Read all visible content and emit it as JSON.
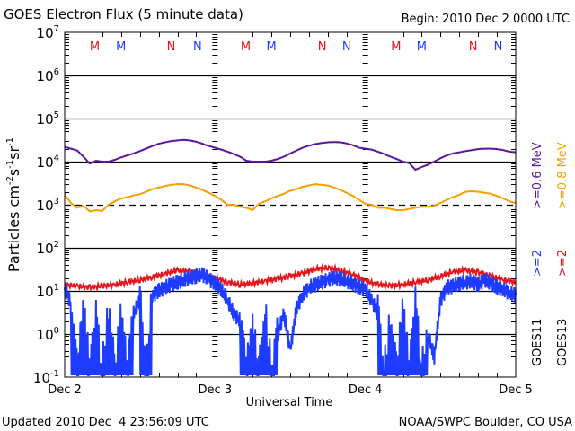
{
  "chart_data": {
    "type": "line",
    "title": "GOES Electron Flux (5 minute data)",
    "begin_label": "Begin: 2010 Dec 2 0000 UTC",
    "xlabel": "Universal Time",
    "ylabel": "Particles cm^-2 s^-1 sr^-1",
    "ylabel_parts": {
      "base": "Particles cm",
      "e1": "-2",
      "s": "s",
      "e2": "-1",
      "sr": "sr",
      "e3": "-1"
    },
    "yscale": "log",
    "ylim": [
      0.1,
      10000000
    ],
    "y_ticks": [
      {
        "base": "10",
        "exp": "7",
        "value": 10000000
      },
      {
        "base": "10",
        "exp": "6",
        "value": 1000000
      },
      {
        "base": "10",
        "exp": "5",
        "value": 100000
      },
      {
        "base": "10",
        "exp": "4",
        "value": 10000
      },
      {
        "base": "10",
        "exp": "3",
        "value": 1000
      },
      {
        "base": "10",
        "exp": "2",
        "value": 100
      },
      {
        "base": "10",
        "exp": "1",
        "value": 10
      },
      {
        "base": "10",
        "exp": "0",
        "value": 1
      },
      {
        "base": "10",
        "exp": "-1",
        "value": 0.1
      }
    ],
    "xlim_hours": [
      0,
      72
    ],
    "x_ticks": [
      {
        "label": "Dec 2",
        "hour": 0
      },
      {
        "label": "Dec 3",
        "hour": 24
      },
      {
        "label": "Dec 4",
        "hour": 48
      },
      {
        "label": "Dec 5",
        "hour": 72
      }
    ],
    "grid_lines": [
      {
        "value": 1000000,
        "style": "solid"
      },
      {
        "value": 100000,
        "style": "solid"
      },
      {
        "value": 10000,
        "style": "solid"
      },
      {
        "value": 1000,
        "style": "dashed"
      },
      {
        "value": 100,
        "style": "solid"
      },
      {
        "value": 10,
        "style": "solid"
      },
      {
        "value": 1,
        "style": "solid"
      }
    ],
    "markers": [
      {
        "label": "M",
        "hour": 4.8,
        "color": "#e8141c"
      },
      {
        "label": "M",
        "hour": 9.0,
        "color": "#1e3cff"
      },
      {
        "label": "N",
        "hour": 17.0,
        "color": "#e8141c"
      },
      {
        "label": "N",
        "hour": 21.2,
        "color": "#1e3cff"
      },
      {
        "label": "M",
        "hour": 28.9,
        "color": "#e8141c"
      },
      {
        "label": "M",
        "hour": 33.0,
        "color": "#1e3cff"
      },
      {
        "label": "N",
        "hour": 41.1,
        "color": "#e8141c"
      },
      {
        "label": "N",
        "hour": 45.0,
        "color": "#1e3cff"
      },
      {
        "label": "M",
        "hour": 52.9,
        "color": "#e8141c"
      },
      {
        "label": "M",
        "hour": 57.0,
        "color": "#1e3cff"
      },
      {
        "label": "N",
        "hour": 65.2,
        "color": "#e8141c"
      },
      {
        "label": "N",
        "hour": 69.2,
        "color": "#1e3cff"
      }
    ],
    "legend": {
      "placement": "right",
      "entries": [
        {
          "text": "GOES11",
          "color": "#000000"
        },
        {
          "text": ">=2",
          "color": "#1e3cff"
        },
        {
          "text": ">=0.6 MeV",
          "color": "#5a14a0"
        },
        {
          "text": "GOES13",
          "color": "#000000"
        },
        {
          "text": ">=2",
          "color": "#e8141c"
        },
        {
          "text": ">=0.8 MeV",
          "color": "#f5a000"
        }
      ]
    },
    "series": [
      {
        "name": "GOES11 >=0.6 MeV",
        "color": "#5a14a0",
        "hours": [
          0,
          1,
          2,
          3,
          4,
          5,
          6,
          7,
          8,
          9,
          10,
          11,
          12,
          13,
          14,
          15,
          16,
          17,
          18,
          19,
          20,
          21,
          22,
          23,
          24,
          25,
          26,
          27,
          28,
          29,
          30,
          31,
          32,
          33,
          34,
          35,
          36,
          37,
          38,
          39,
          40,
          41,
          42,
          43,
          44,
          45,
          46,
          47,
          48,
          49,
          50,
          51,
          52,
          53,
          54,
          55,
          56,
          57,
          58,
          59,
          60,
          61,
          62,
          63,
          64,
          65,
          66,
          67,
          68,
          69,
          70,
          71,
          72
        ],
        "values": [
          22000,
          20000,
          18000,
          13000,
          9000,
          10500,
          10000,
          10000,
          11000,
          12500,
          14000,
          15500,
          17500,
          20000,
          23000,
          26000,
          28000,
          30000,
          31000,
          32000,
          31000,
          29000,
          26000,
          23000,
          21000,
          19000,
          17000,
          15000,
          13000,
          10500,
          10000,
          10000,
          10000,
          10500,
          11500,
          13000,
          15500,
          18000,
          21000,
          23500,
          25500,
          27000,
          28000,
          28500,
          28000,
          26500,
          24000,
          21000,
          20000,
          19000,
          17000,
          15000,
          13000,
          11500,
          10000,
          9200,
          6500,
          7500,
          8500,
          10000,
          12000,
          14000,
          15500,
          16500,
          17500,
          18500,
          19500,
          20000,
          20000,
          19500,
          18500,
          17000,
          16500
        ]
      },
      {
        "name": "GOES13 >=0.8 MeV",
        "color": "#f5a000",
        "hours": [
          0,
          1,
          2,
          3,
          4,
          5,
          6,
          7,
          8,
          9,
          10,
          11,
          12,
          13,
          14,
          15,
          16,
          17,
          18,
          19,
          20,
          21,
          22,
          23,
          24,
          25,
          26,
          27,
          28,
          29,
          30,
          31,
          32,
          33,
          34,
          35,
          36,
          37,
          38,
          39,
          40,
          41,
          42,
          43,
          44,
          45,
          46,
          47,
          48,
          49,
          50,
          51,
          52,
          53,
          54,
          55,
          56,
          57,
          58,
          59,
          60,
          61,
          62,
          63,
          64,
          65,
          66,
          67,
          68,
          69,
          70,
          71,
          72
        ],
        "values": [
          1700,
          1100,
          850,
          950,
          700,
          750,
          720,
          1000,
          1200,
          1400,
          1500,
          1650,
          1750,
          2000,
          2300,
          2500,
          2700,
          2900,
          3000,
          3000,
          2800,
          2500,
          2200,
          1900,
          1600,
          1300,
          1000,
          1000,
          900,
          850,
          750,
          1050,
          1200,
          1400,
          1600,
          1800,
          2100,
          2300,
          2600,
          2800,
          3000,
          2900,
          2800,
          2500,
          2200,
          1900,
          1600,
          1300,
          1050,
          1000,
          850,
          850,
          800,
          750,
          750,
          800,
          850,
          900,
          900,
          950,
          1100,
          1300,
          1500,
          1700,
          2000,
          2050,
          2000,
          1900,
          1800,
          1600,
          1400,
          1200,
          1100
        ]
      },
      {
        "name": "GOES13 >=2 MeV",
        "color": "#e8141c",
        "hours": [
          0,
          2,
          4,
          6,
          8,
          10,
          12,
          14,
          16,
          18,
          20,
          22,
          24,
          26,
          28,
          30,
          32,
          34,
          36,
          38,
          40,
          42,
          44,
          46,
          48,
          50,
          52,
          54,
          56,
          58,
          60,
          62,
          64,
          66,
          68,
          70,
          72
        ],
        "values": [
          14,
          13,
          12,
          13,
          14,
          16,
          18,
          21,
          25,
          30,
          28,
          24,
          20,
          16,
          14,
          15,
          17,
          19,
          22,
          26,
          32,
          35,
          30,
          24,
          17,
          14,
          13,
          14,
          16,
          18,
          22,
          28,
          30,
          27,
          22,
          18,
          16
        ]
      },
      {
        "name": "GOES11 >=2 MeV",
        "color": "#1e3cff",
        "hours": [
          0,
          1,
          2,
          3,
          4,
          5,
          6,
          7,
          8,
          9,
          10,
          11,
          12,
          13,
          14,
          15,
          16,
          17,
          18,
          19,
          20,
          21,
          22,
          23,
          24,
          25,
          26,
          27,
          28,
          29,
          30,
          31,
          32,
          33,
          34,
          35,
          36,
          37,
          38,
          39,
          40,
          41,
          42,
          43,
          44,
          45,
          46,
          47,
          48,
          49,
          50,
          51,
          52,
          53,
          54,
          55,
          56,
          57,
          58,
          59,
          60,
          61,
          62,
          63,
          64,
          65,
          66,
          67,
          68,
          69,
          70,
          71,
          72
        ],
        "values": [
          12,
          5,
          0.12,
          3,
          0.12,
          2,
          0.12,
          4,
          0.12,
          2,
          0.12,
          3,
          6,
          0.12,
          8,
          10,
          12,
          14,
          16,
          18,
          20,
          22,
          24,
          19,
          15,
          11,
          6,
          3,
          2,
          0.12,
          1,
          0.12,
          3,
          0.12,
          1,
          3,
          0.4,
          4,
          8,
          12,
          14,
          16,
          18,
          20,
          19,
          17,
          15,
          12,
          11,
          6,
          3,
          0.12,
          2,
          0.12,
          3,
          0.12,
          4,
          0.12,
          1,
          0.3,
          6,
          12,
          13,
          15,
          16,
          17,
          14,
          18,
          15,
          12,
          11,
          9,
          8
        ]
      }
    ]
  },
  "footer": {
    "updated": "Updated 2010 Dec  4 23:56:09 UTC",
    "credit": "NOAA/SWPC Boulder, CO USA"
  }
}
